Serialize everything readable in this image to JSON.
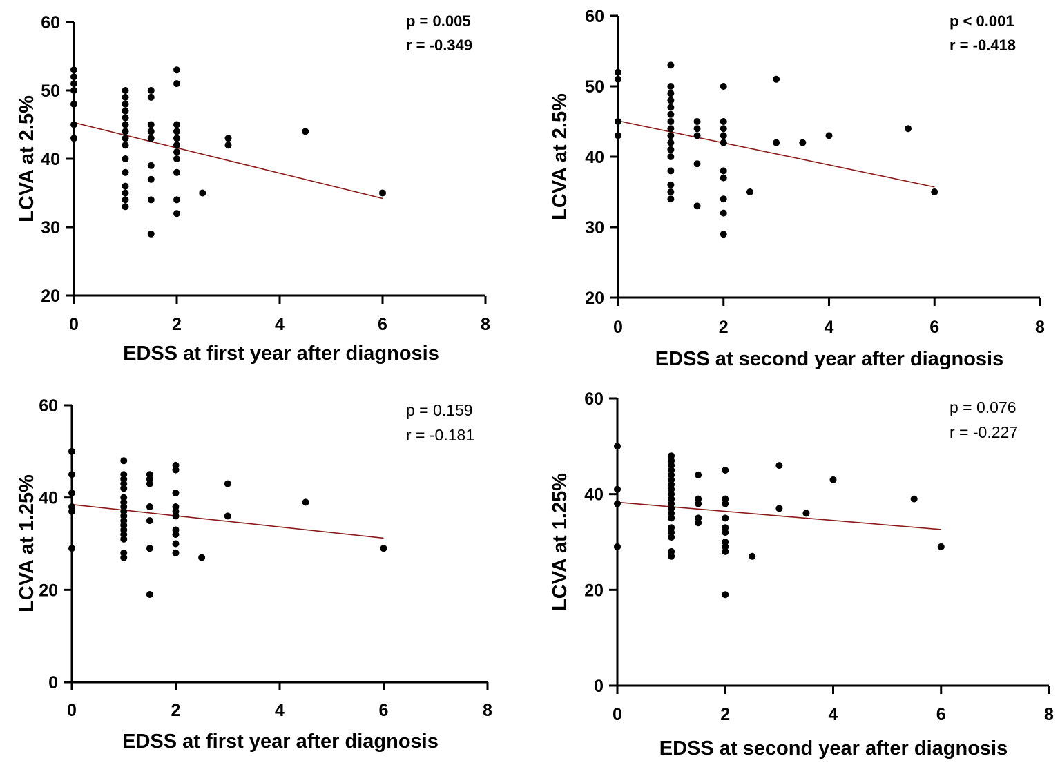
{
  "chart_data": [
    {
      "type": "scatter",
      "xlabel": "EDSS at first year after diagnosis",
      "ylabel": "LCVA at 2.5%",
      "xlim": [
        0,
        8
      ],
      "ylim": [
        20,
        60
      ],
      "xticks": [
        "0",
        "2",
        "4",
        "6",
        "8"
      ],
      "yticks": [
        "20",
        "30",
        "40",
        "50",
        "60"
      ],
      "annotations": [
        "p = 0.005",
        "r = -0.349"
      ],
      "annotation_style": "bold",
      "fit": [
        [
          0,
          45.3
        ],
        [
          6,
          34.2
        ]
      ],
      "points": [
        [
          0,
          53
        ],
        [
          0,
          52
        ],
        [
          0,
          51
        ],
        [
          0,
          50
        ],
        [
          0,
          48
        ],
        [
          0,
          45
        ],
        [
          0,
          43
        ],
        [
          1,
          50
        ],
        [
          1,
          49
        ],
        [
          1,
          48
        ],
        [
          1,
          47
        ],
        [
          1,
          46
        ],
        [
          1,
          45
        ],
        [
          1,
          44
        ],
        [
          1,
          43
        ],
        [
          1,
          42
        ],
        [
          1,
          40
        ],
        [
          1,
          38
        ],
        [
          1,
          36
        ],
        [
          1,
          35
        ],
        [
          1,
          34
        ],
        [
          1,
          33
        ],
        [
          1.5,
          50
        ],
        [
          1.5,
          49
        ],
        [
          1.5,
          45
        ],
        [
          1.5,
          44
        ],
        [
          1.5,
          43
        ],
        [
          1.5,
          39
        ],
        [
          1.5,
          37
        ],
        [
          1.5,
          34
        ],
        [
          1.5,
          29
        ],
        [
          2,
          53
        ],
        [
          2,
          51
        ],
        [
          2,
          45
        ],
        [
          2,
          44
        ],
        [
          2,
          43
        ],
        [
          2,
          42
        ],
        [
          2,
          41
        ],
        [
          2,
          40
        ],
        [
          2,
          38
        ],
        [
          2,
          34
        ],
        [
          2,
          32
        ],
        [
          2.5,
          35
        ],
        [
          3,
          43
        ],
        [
          3,
          42
        ],
        [
          4.5,
          44
        ],
        [
          6,
          35
        ]
      ]
    },
    {
      "type": "scatter",
      "xlabel": "EDSS at second year after diagnosis",
      "ylabel": "LCVA at 2.5%",
      "xlim": [
        0,
        8
      ],
      "ylim": [
        20,
        60
      ],
      "xticks": [
        "0",
        "2",
        "4",
        "6",
        "8"
      ],
      "yticks": [
        "20",
        "30",
        "40",
        "50",
        "60"
      ],
      "annotations": [
        "p < 0.001",
        "r = -0.418"
      ],
      "annotation_style": "bold",
      "fit": [
        [
          0,
          45.1
        ],
        [
          6,
          35.7
        ]
      ],
      "points": [
        [
          0,
          52
        ],
        [
          0,
          51
        ],
        [
          0,
          45
        ],
        [
          0,
          43
        ],
        [
          1,
          53
        ],
        [
          1,
          50
        ],
        [
          1,
          49
        ],
        [
          1,
          48
        ],
        [
          1,
          47
        ],
        [
          1,
          46
        ],
        [
          1,
          45
        ],
        [
          1,
          44
        ],
        [
          1,
          43
        ],
        [
          1,
          42
        ],
        [
          1,
          41
        ],
        [
          1,
          40
        ],
        [
          1,
          38
        ],
        [
          1,
          36
        ],
        [
          1,
          35
        ],
        [
          1,
          34
        ],
        [
          1.5,
          45
        ],
        [
          1.5,
          44
        ],
        [
          1.5,
          43
        ],
        [
          1.5,
          39
        ],
        [
          1.5,
          33
        ],
        [
          2,
          50
        ],
        [
          2,
          45
        ],
        [
          2,
          44
        ],
        [
          2,
          43
        ],
        [
          2,
          42
        ],
        [
          2,
          38
        ],
        [
          2,
          37
        ],
        [
          2,
          34
        ],
        [
          2,
          32
        ],
        [
          2,
          29
        ],
        [
          2.5,
          35
        ],
        [
          3,
          51
        ],
        [
          3,
          42
        ],
        [
          3.5,
          42
        ],
        [
          4,
          43
        ],
        [
          5.5,
          44
        ],
        [
          6,
          35
        ]
      ]
    },
    {
      "type": "scatter",
      "xlabel": "EDSS at first year after diagnosis",
      "ylabel": "LCVA at 1.25%",
      "xlim": [
        0,
        8
      ],
      "ylim": [
        0,
        60
      ],
      "xticks": [
        "0",
        "2",
        "4",
        "6",
        "8"
      ],
      "yticks": [
        "0",
        "20",
        "40",
        "60"
      ],
      "annotations": [
        "p = 0.159",
        "r = -0.181"
      ],
      "annotation_style": "normal",
      "fit": [
        [
          0,
          38.5
        ],
        [
          6,
          31.2
        ]
      ],
      "points": [
        [
          0,
          50
        ],
        [
          0,
          45
        ],
        [
          0,
          41
        ],
        [
          0,
          38
        ],
        [
          0,
          37
        ],
        [
          0,
          29
        ],
        [
          1,
          48
        ],
        [
          1,
          45
        ],
        [
          1,
          44
        ],
        [
          1,
          43
        ],
        [
          1,
          42
        ],
        [
          1,
          40
        ],
        [
          1,
          39
        ],
        [
          1,
          38
        ],
        [
          1,
          37
        ],
        [
          1,
          36
        ],
        [
          1,
          35
        ],
        [
          1,
          34
        ],
        [
          1,
          33
        ],
        [
          1,
          32
        ],
        [
          1,
          31
        ],
        [
          1,
          28
        ],
        [
          1,
          27
        ],
        [
          1.5,
          45
        ],
        [
          1.5,
          44
        ],
        [
          1.5,
          43
        ],
        [
          1.5,
          38
        ],
        [
          1.5,
          35
        ],
        [
          1.5,
          29
        ],
        [
          1.5,
          19
        ],
        [
          2,
          47
        ],
        [
          2,
          46
        ],
        [
          2,
          41
        ],
        [
          2,
          38
        ],
        [
          2,
          37
        ],
        [
          2,
          36
        ],
        [
          2,
          33
        ],
        [
          2,
          32
        ],
        [
          2,
          30
        ],
        [
          2,
          28
        ],
        [
          2.5,
          27
        ],
        [
          3,
          43
        ],
        [
          3,
          36
        ],
        [
          4.5,
          39
        ],
        [
          6,
          29
        ]
      ]
    },
    {
      "type": "scatter",
      "xlabel": "EDSS at second year after diagnosis",
      "ylabel": "LCVA at 1.25%",
      "xlim": [
        0,
        8
      ],
      "ylim": [
        0,
        60
      ],
      "xticks": [
        "0",
        "2",
        "4",
        "6",
        "8"
      ],
      "yticks": [
        "0",
        "20",
        "40",
        "60"
      ],
      "annotations": [
        "p = 0.076",
        "r = -0.227"
      ],
      "annotation_style": "normal",
      "fit": [
        [
          0,
          38.3
        ],
        [
          6,
          32.6
        ]
      ],
      "points": [
        [
          0,
          50
        ],
        [
          0,
          41
        ],
        [
          0,
          38
        ],
        [
          0,
          29
        ],
        [
          1,
          48
        ],
        [
          1,
          47
        ],
        [
          1,
          46
        ],
        [
          1,
          45
        ],
        [
          1,
          44
        ],
        [
          1,
          43
        ],
        [
          1,
          42
        ],
        [
          1,
          41
        ],
        [
          1,
          40
        ],
        [
          1,
          39
        ],
        [
          1,
          38
        ],
        [
          1,
          37
        ],
        [
          1,
          36
        ],
        [
          1,
          35
        ],
        [
          1,
          33
        ],
        [
          1,
          32
        ],
        [
          1,
          31
        ],
        [
          1,
          28
        ],
        [
          1,
          27
        ],
        [
          1.5,
          44
        ],
        [
          1.5,
          39
        ],
        [
          1.5,
          38
        ],
        [
          1.5,
          35
        ],
        [
          1.5,
          34
        ],
        [
          2,
          45
        ],
        [
          2,
          39
        ],
        [
          2,
          38
        ],
        [
          2,
          35
        ],
        [
          2,
          33
        ],
        [
          2,
          32
        ],
        [
          2,
          30
        ],
        [
          2,
          29
        ],
        [
          2,
          28
        ],
        [
          2,
          19
        ],
        [
          2.5,
          27
        ],
        [
          3,
          46
        ],
        [
          3,
          37
        ],
        [
          3.5,
          36
        ],
        [
          4,
          43
        ],
        [
          5.5,
          39
        ],
        [
          6,
          29
        ]
      ]
    }
  ]
}
